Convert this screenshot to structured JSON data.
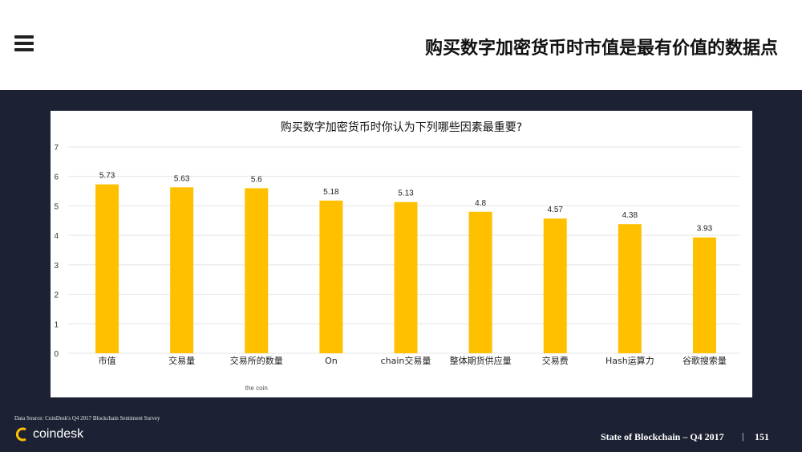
{
  "header": {
    "title": "购买数字加密货币时市值是最有价值的数据点",
    "menu_icon": "hamburger-menu-icon"
  },
  "chart_data": {
    "type": "bar",
    "title": "购买数字加密货币时你认为下列哪些因素最重要?",
    "categories": [
      "市值",
      "交易量",
      "交易所的数量",
      "On",
      "chain交易量",
      "整体期货供应量",
      "交易费",
      "Hash运算力",
      "谷歌搜索量"
    ],
    "values": [
      5.73,
      5.63,
      5.6,
      5.18,
      5.13,
      4.8,
      4.57,
      4.38,
      3.93
    ],
    "value_labels": [
      "5.73",
      "5.63",
      "5.6",
      "5.18",
      "5.13",
      "4.8",
      "4.57",
      "4.38",
      "3.93"
    ],
    "yticks": [
      0,
      1,
      2,
      3,
      4,
      5,
      6,
      7
    ],
    "ylim": [
      0,
      7
    ],
    "xlabel": "",
    "ylabel": "",
    "grid": true,
    "bar_color": "#FFC000",
    "grid_color": "#e4e4e4",
    "extra_label": "the coin"
  },
  "footer": {
    "source": "Data Source: CoinDesk's Q4 2017 Blockchain Sentiment Survey",
    "logo_text": "coindesk",
    "logo_icon": "coindesk-logo-icon",
    "report": "State of Blockchain – Q4 2017",
    "separator": "|",
    "page_number": "151"
  },
  "colors": {
    "dark_background": "#1c2233",
    "accent_yellow": "#FFC000"
  }
}
